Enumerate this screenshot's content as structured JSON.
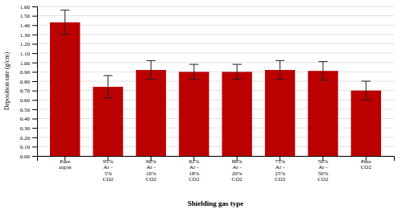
{
  "chart_data": {
    "type": "bar",
    "categories": [
      "Pure\nargon",
      "95%\nAr -\n5%\nCO2",
      "90%\nAr -\n10%\nCO2",
      "82%\nAr -\n18%\nCO2",
      "80%\nAr -\n20%\nCO2",
      "75%\nAr -\n25%\nCO2",
      "50%\nAr -\n50%\nCO2",
      "Pure\nCO2"
    ],
    "values": [
      1.43,
      0.74,
      0.92,
      0.9,
      0.9,
      0.92,
      0.91,
      0.7
    ],
    "errors": [
      0.13,
      0.12,
      0.1,
      0.08,
      0.08,
      0.1,
      0.1,
      0.1
    ],
    "color": "#bb0000",
    "xlabel": "Shielding gas type",
    "ylabel": "Deposition rate (g/cm)",
    "ylim": [
      0.0,
      1.6
    ],
    "yticks": [
      {
        "value": 0.0,
        "label": "0.00"
      },
      {
        "value": 0.1,
        "label": "0.10"
      },
      {
        "value": 0.2,
        "label": "0.20"
      },
      {
        "value": 0.3,
        "label": "0.30"
      },
      {
        "value": 0.4,
        "label": "0.40"
      },
      {
        "value": 0.5,
        "label": "0.50"
      },
      {
        "value": 0.6,
        "label": "0.60"
      },
      {
        "value": 0.7,
        "label": "0.70"
      },
      {
        "value": 0.8,
        "label": "0.80"
      },
      {
        "value": 0.9,
        "label": "0.90"
      },
      {
        "value": 1.0,
        "label": "1.00"
      },
      {
        "value": 1.1,
        "label": "1.10"
      },
      {
        "value": 1.2,
        "label": "1.20"
      },
      {
        "value": 1.3,
        "label": "1.30"
      },
      {
        "value": 1.4,
        "label": "1.40"
      },
      {
        "value": 1.5,
        "label": "1.50"
      },
      {
        "value": 1.6,
        "label": "1.60"
      }
    ],
    "grid": true
  }
}
